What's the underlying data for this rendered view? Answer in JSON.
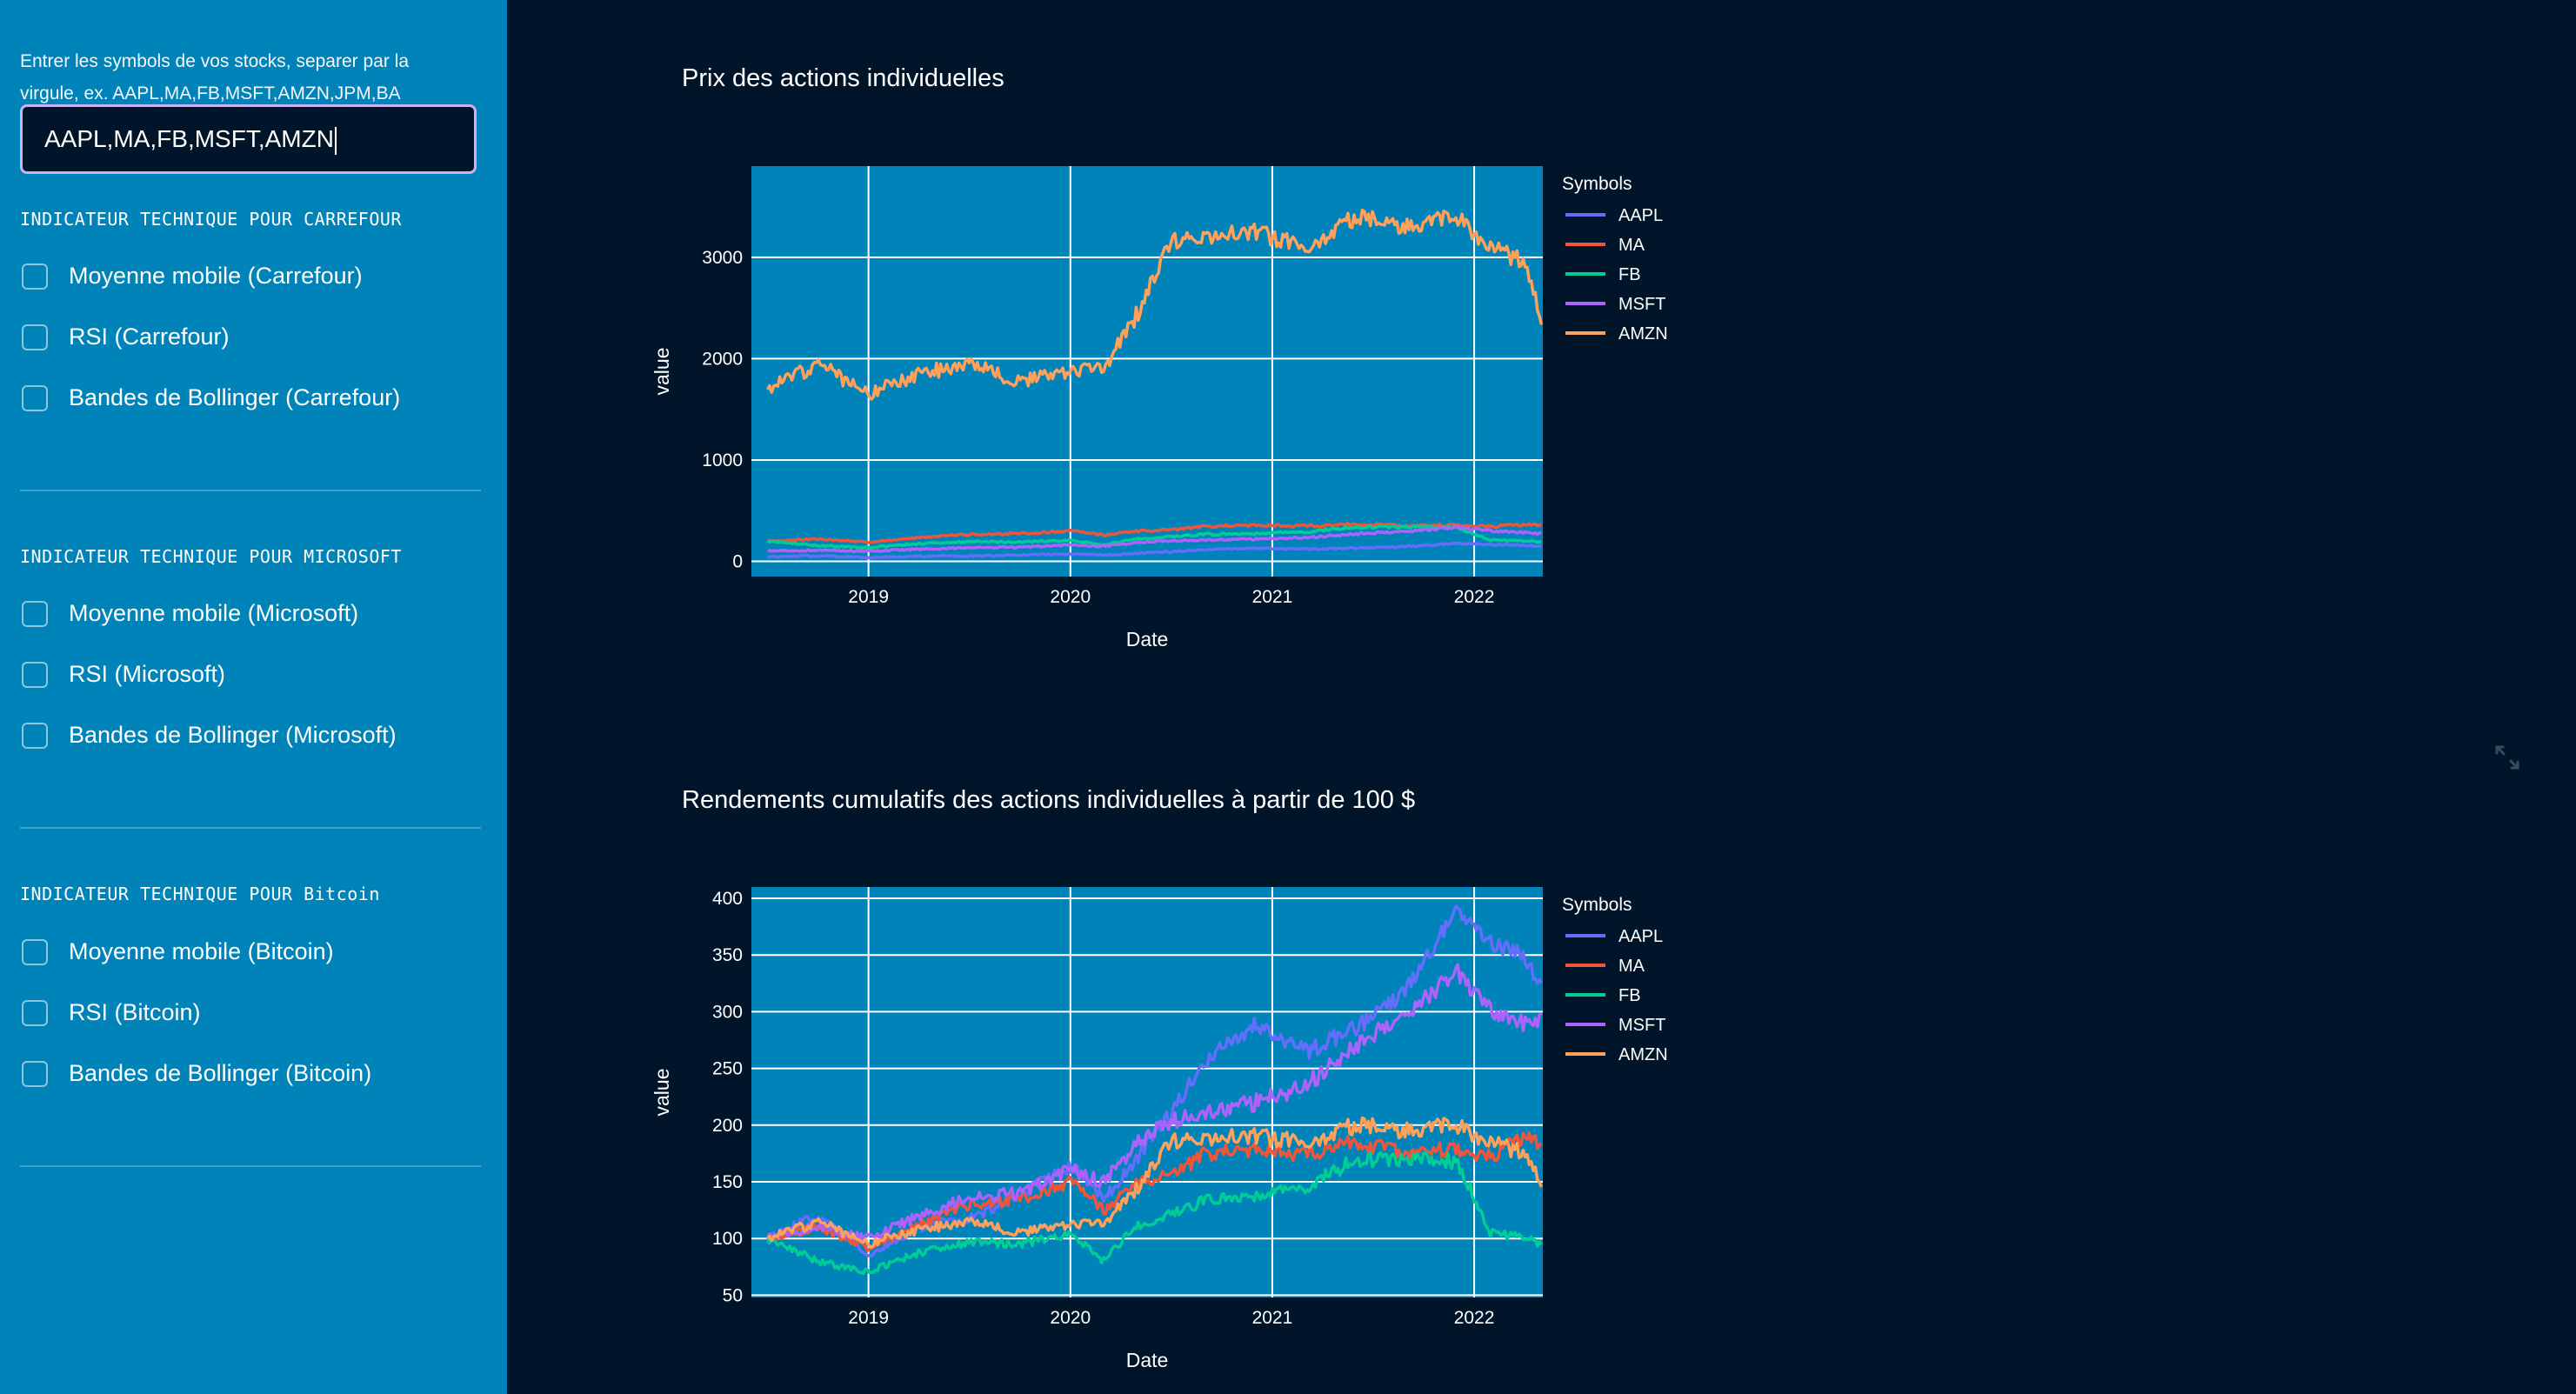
{
  "sidebar": {
    "input_label": "Entrer les symbols de vos stocks, separer par la virgule, ex. AAPL,MA,FB,MSFT,AMZN,JPM,BA",
    "input_value": "AAPL,MA,FB,MSFT,AMZN",
    "sections": [
      {
        "title": "INDICATEUR TECHNIQUE POUR CARREFOUR",
        "options": [
          "Moyenne mobile (Carrefour)",
          "RSI (Carrefour)",
          "Bandes de Bollinger (Carrefour)"
        ],
        "checked": [
          false,
          false,
          false
        ]
      },
      {
        "title": "INDICATEUR TECHNIQUE POUR MICROSOFT",
        "options": [
          "Moyenne mobile (Microsoft)",
          "RSI (Microsoft)",
          "Bandes de Bollinger (Microsoft)"
        ],
        "checked": [
          false,
          false,
          false
        ]
      },
      {
        "title": "INDICATEUR TECHNIQUE POUR Bitcoin",
        "options": [
          "Moyenne mobile (Bitcoin)",
          "RSI (Bitcoin)",
          "Bandes de Bollinger (Bitcoin)"
        ],
        "checked": [
          false,
          false,
          false
        ]
      }
    ]
  },
  "colors": {
    "sidebar_bg": "#0083B8",
    "main_bg": "#001529",
    "plot_bg": "#0083B8",
    "AAPL": "#636efa",
    "MA": "#EF553B",
    "FB": "#00cc96",
    "MSFT": "#ab63fa",
    "AMZN": "#FFA15A"
  },
  "icons": {
    "expand": "expand-icon"
  },
  "chart_data": [
    {
      "type": "line",
      "title": "Prix des actions individuelles",
      "xlabel": "Date",
      "ylabel": "value",
      "legend_title": "Symbols",
      "legend_position": "right",
      "x": [
        "2018-07",
        "2018-10",
        "2019-01",
        "2019-04",
        "2019-07",
        "2019-10",
        "2020-01",
        "2020-03",
        "2020-05",
        "2020-07",
        "2020-09",
        "2020-12",
        "2021-03",
        "2021-06",
        "2021-09",
        "2021-12",
        "2022-02",
        "2022-04",
        "2022-05"
      ],
      "xticks": [
        "2019",
        "2020",
        "2021",
        "2022"
      ],
      "yticks": [
        0,
        1000,
        2000,
        3000
      ],
      "ylim": [
        -150,
        3900
      ],
      "grid": true,
      "series": [
        {
          "name": "AAPL",
          "values": [
            45,
            55,
            39,
            50,
            53,
            62,
            75,
            62,
            78,
            95,
            115,
            132,
            121,
            130,
            146,
            177,
            165,
            160,
            145
          ]
        },
        {
          "name": "MA",
          "values": [
            200,
            220,
            190,
            235,
            265,
            275,
            300,
            260,
            300,
            310,
            345,
            355,
            350,
            365,
            350,
            360,
            345,
            360,
            355
          ]
        },
        {
          "name": "FB",
          "values": [
            200,
            155,
            135,
            175,
            195,
            190,
            210,
            160,
            225,
            245,
            265,
            275,
            290,
            340,
            340,
            335,
            210,
            200,
            190
          ]
        },
        {
          "name": "MSFT",
          "values": [
            100,
            110,
            100,
            120,
            136,
            140,
            160,
            150,
            185,
            205,
            210,
            220,
            235,
            270,
            300,
            335,
            300,
            285,
            275
          ]
        },
        {
          "name": "AMZN",
          "values": [
            1700,
            1950,
            1650,
            1850,
            1950,
            1770,
            1870,
            1900,
            2450,
            3150,
            3200,
            3250,
            3100,
            3400,
            3300,
            3400,
            3100,
            2950,
            2400
          ]
        }
      ]
    },
    {
      "type": "line",
      "title": "Rendements cumulatifs des actions individuelles à partir de 100 $",
      "xlabel": "Date",
      "ylabel": "value",
      "legend_title": "Symbols",
      "legend_position": "right",
      "x": [
        "2018-07",
        "2018-10",
        "2019-01",
        "2019-04",
        "2019-07",
        "2019-10",
        "2020-01",
        "2020-03",
        "2020-05",
        "2020-07",
        "2020-09",
        "2020-12",
        "2021-03",
        "2021-06",
        "2021-09",
        "2021-12",
        "2022-02",
        "2022-04",
        "2022-05"
      ],
      "xticks": [
        "2019",
        "2020",
        "2021",
        "2022"
      ],
      "yticks": [
        50,
        100,
        150,
        200,
        250,
        300,
        350,
        400
      ],
      "ylim": [
        48,
        410
      ],
      "grid": true,
      "series": [
        {
          "name": "AAPL",
          "values": [
            100,
            120,
            85,
            110,
            118,
            138,
            165,
            135,
            170,
            210,
            255,
            290,
            265,
            285,
            320,
            390,
            360,
            350,
            320
          ]
        },
        {
          "name": "MA",
          "values": [
            100,
            110,
            92,
            112,
            130,
            135,
            150,
            125,
            150,
            155,
            175,
            178,
            175,
            185,
            175,
            180,
            172,
            190,
            180
          ]
        },
        {
          "name": "FB",
          "values": [
            100,
            80,
            70,
            88,
            97,
            95,
            105,
            80,
            112,
            122,
            133,
            138,
            145,
            170,
            170,
            168,
            105,
            100,
            95
          ]
        },
        {
          "name": "MSFT",
          "values": [
            100,
            110,
            100,
            120,
            136,
            140,
            160,
            150,
            185,
            205,
            210,
            220,
            235,
            270,
            300,
            335,
            300,
            290,
            295
          ]
        },
        {
          "name": "AMZN",
          "values": [
            100,
            115,
            95,
            108,
            115,
            105,
            112,
            113,
            145,
            185,
            188,
            190,
            185,
            200,
            195,
            200,
            185,
            175,
            150
          ]
        }
      ]
    }
  ]
}
